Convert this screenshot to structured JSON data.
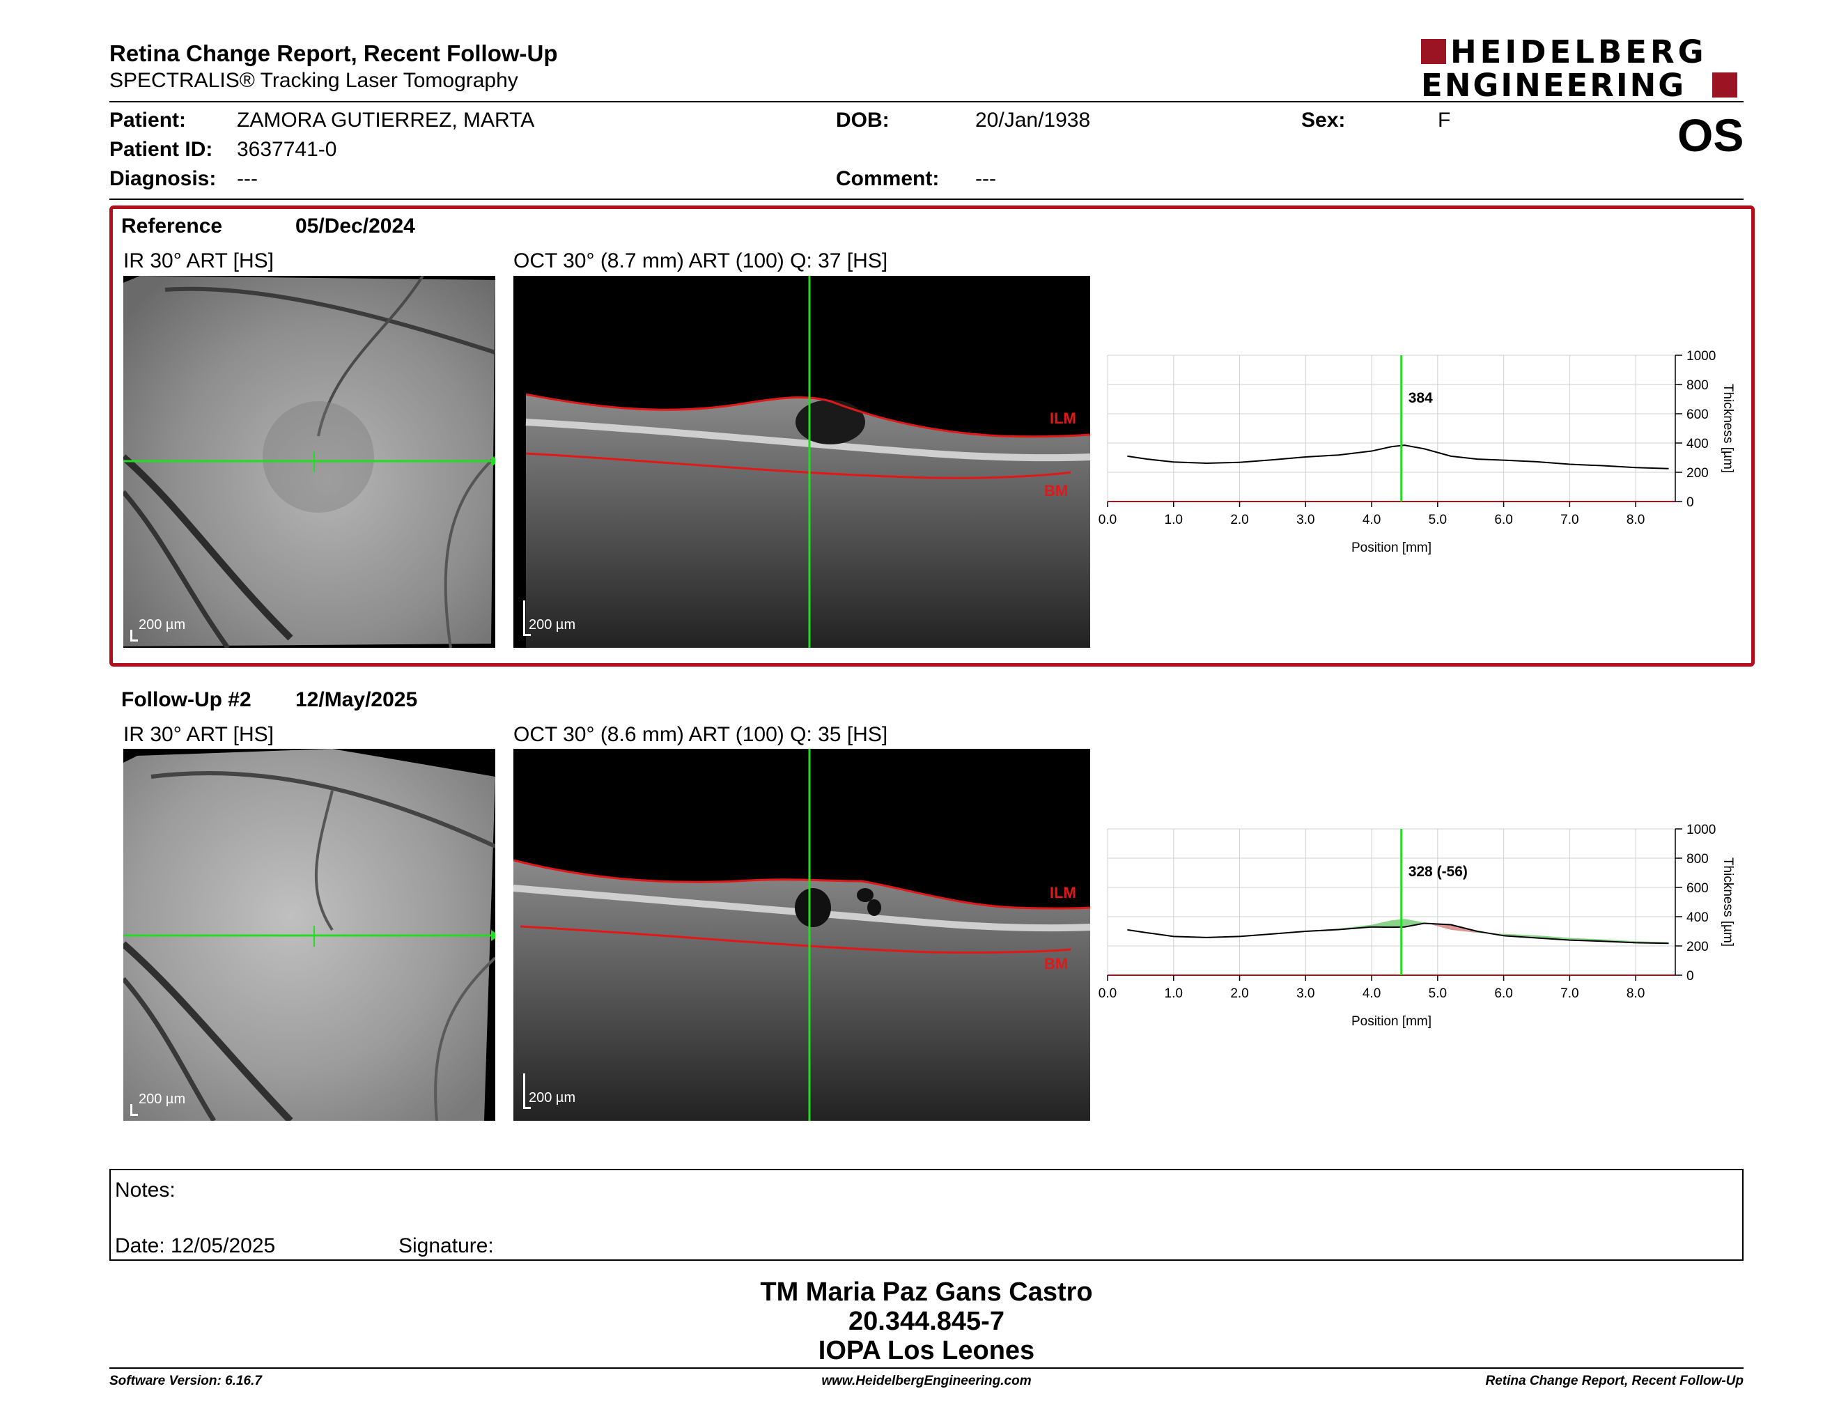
{
  "header": {
    "title": "Retina Change Report, Recent Follow-Up",
    "subtitle": "SPECTRALIS® Tracking Laser Tomography",
    "logo_line1": "HEIDELBERG",
    "logo_line2": "ENGINEERING",
    "eye": "OS"
  },
  "patient": {
    "patient_label": "Patient:",
    "patient_value": "ZAMORA GUTIERREZ, MARTA",
    "id_label": "Patient ID:",
    "id_value": "3637741-0",
    "diagnosis_label": "Diagnosis:",
    "diagnosis_value": "---",
    "dob_label": "DOB:",
    "dob_value": "20/Jan/1938",
    "comment_label": "Comment:",
    "comment_value": "---",
    "sex_label": "Sex:",
    "sex_value": "F"
  },
  "exams": [
    {
      "label": "Reference",
      "date": "05/Dec/2024",
      "ir_title": "IR 30° ART [HS]",
      "oct_title": "OCT 30° (8.7 mm) ART (100) Q: 37 [HS]",
      "ir_scale": "200 µm",
      "oct_scale": "200 µm",
      "ilm": "ILM",
      "bm": "BM"
    },
    {
      "label": "Follow-Up #2",
      "date": "12/May/2025",
      "ir_title": "IR 30° ART [HS]",
      "oct_title": "OCT 30° (8.6 mm) ART (100) Q: 35 [HS]",
      "ir_scale": "200 µm",
      "oct_scale": "200 µm",
      "ilm": "ILM",
      "bm": "BM"
    }
  ],
  "chart_data": [
    {
      "type": "line",
      "xlabel": "Position [mm]",
      "ylabel": "Thickness [µm]",
      "xlim": [
        0,
        8.6
      ],
      "ylim": [
        0,
        1000
      ],
      "xticks": [
        "0.0",
        "1.0",
        "2.0",
        "3.0",
        "4.0",
        "5.0",
        "6.0",
        "7.0",
        "8.0"
      ],
      "yticks": [
        "0",
        "200",
        "400",
        "600",
        "800",
        "1000"
      ],
      "grid": true,
      "cursor_x": 4.45,
      "cursor_label": "384",
      "series": [
        {
          "x": [
            0.3,
            0.6,
            1.0,
            1.5,
            2.0,
            2.5,
            3.0,
            3.5,
            4.0,
            4.3,
            4.5,
            4.8,
            5.2,
            5.6,
            6.0,
            6.5,
            7.0,
            7.5,
            8.0,
            8.5
          ],
          "y": [
            310,
            290,
            270,
            262,
            268,
            285,
            305,
            318,
            345,
            375,
            385,
            360,
            310,
            290,
            283,
            272,
            255,
            245,
            232,
            225
          ]
        }
      ]
    },
    {
      "type": "line",
      "xlabel": "Position [mm]",
      "ylabel": "Thickness [µm]",
      "xlim": [
        0,
        8.6
      ],
      "ylim": [
        0,
        1000
      ],
      "xticks": [
        "0.0",
        "1.0",
        "2.0",
        "3.0",
        "4.0",
        "5.0",
        "6.0",
        "7.0",
        "8.0"
      ],
      "yticks": [
        "0",
        "200",
        "400",
        "600",
        "800",
        "1000"
      ],
      "grid": true,
      "cursor_x": 4.45,
      "cursor_label": "328 (-56)",
      "series": [
        {
          "x": [
            0.3,
            0.6,
            1.0,
            1.5,
            2.0,
            2.5,
            3.0,
            3.5,
            4.0,
            4.3,
            4.5,
            4.8,
            5.2,
            5.6,
            6.0,
            6.5,
            7.0,
            7.5,
            8.0,
            8.5
          ],
          "y": [
            310,
            290,
            265,
            258,
            265,
            282,
            300,
            312,
            330,
            328,
            330,
            355,
            345,
            300,
            270,
            255,
            240,
            232,
            222,
            218
          ]
        }
      ],
      "difference_colors": {
        "decrease": "#7ccf7c",
        "increase": "#d98a8a"
      }
    }
  ],
  "notes": {
    "notes_label": "Notes:",
    "date_label": "Date: 12/05/2025",
    "signature_label": "Signature:"
  },
  "stamp": {
    "line1": "TM Maria Paz Gans Castro",
    "line2": "20.344.845-7",
    "line3": "IOPA Los Leones"
  },
  "footer": {
    "software": "Software Version: 6.16.7",
    "website": "www.HeidelbergEngineering.com",
    "report": "Retina Change Report, Recent Follow-Up"
  },
  "colors": {
    "frame": "#b30f1b",
    "logo": "#9b1424",
    "cursor": "#22dd22",
    "layer": "#e01818"
  }
}
